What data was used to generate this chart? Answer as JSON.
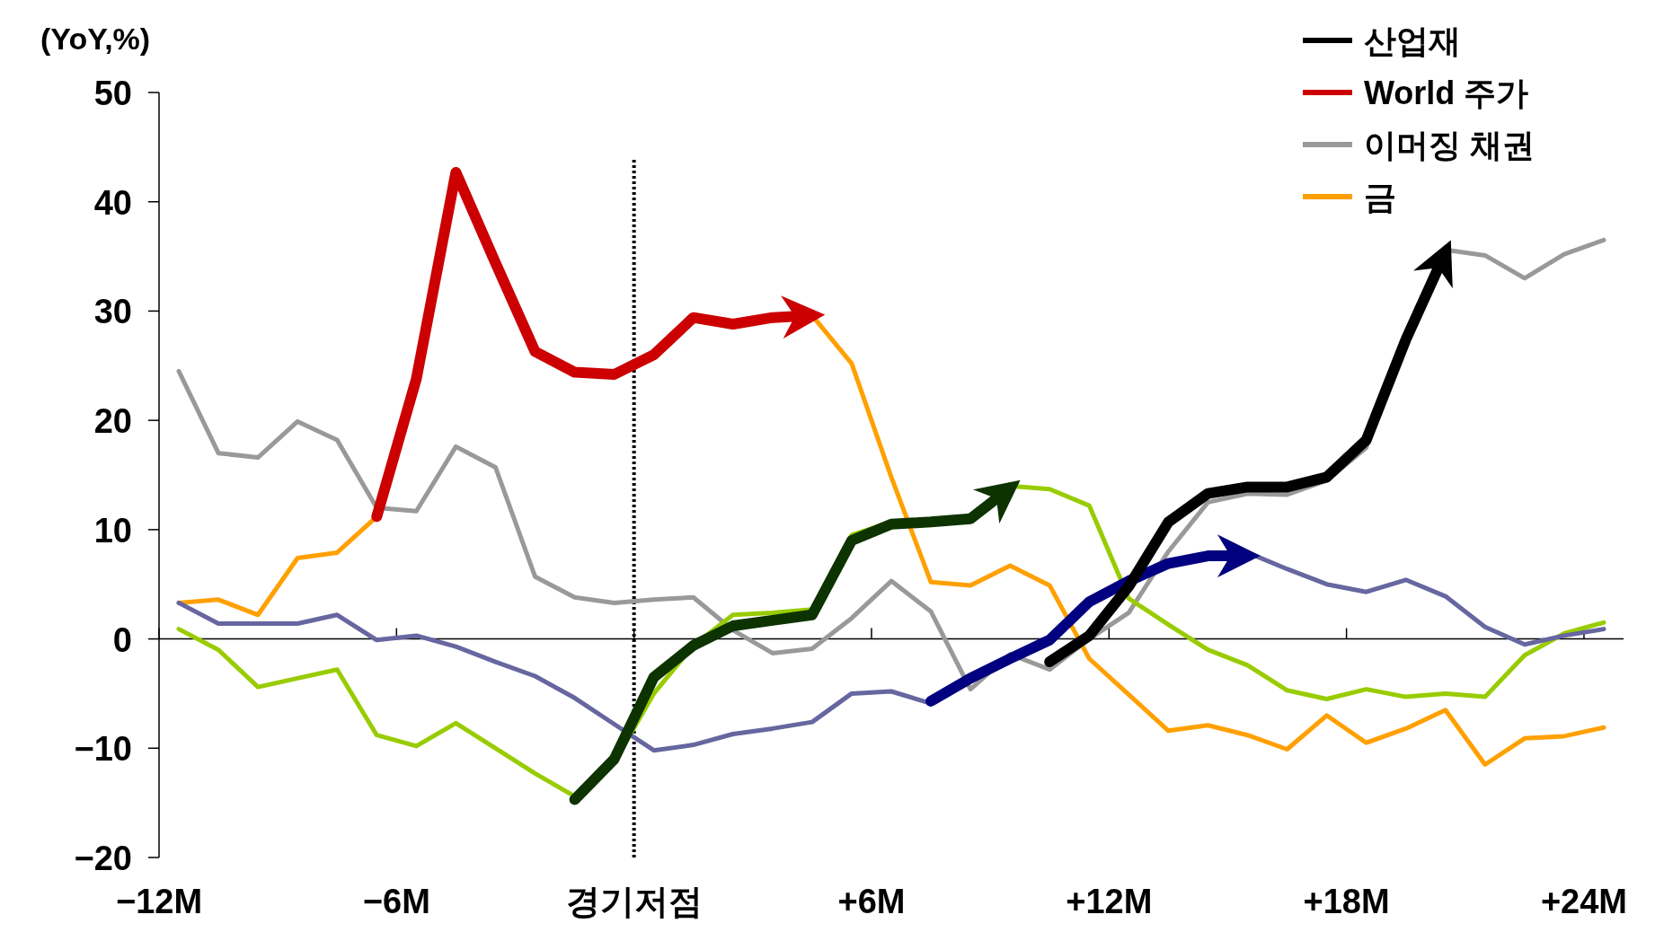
{
  "chart_data": {
    "type": "line",
    "ylabel": "(YoY,%)",
    "x": [
      -11.5,
      -10.5,
      -9.5,
      -8.5,
      -7.5,
      -6.5,
      -5.5,
      -4.5,
      -3.5,
      -2.5,
      -1.5,
      -0.5,
      0.5,
      1.5,
      2.5,
      3.5,
      4.5,
      5.5,
      6.5,
      7.5,
      8.5,
      9.5,
      10.5,
      11.5,
      12.5,
      13.5,
      14.5,
      15.5,
      16.5,
      17.5,
      18.5,
      19.5,
      20.5,
      21.5,
      22.5,
      23.5,
      24.5
    ],
    "xlim": [
      -12,
      25
    ],
    "xticks": [
      {
        "value": -12,
        "label": "−12M"
      },
      {
        "value": -6,
        "label": "−6M"
      },
      {
        "value": 0,
        "label": "경기저점"
      },
      {
        "value": 6,
        "label": "+6M"
      },
      {
        "value": 12,
        "label": "+12M"
      },
      {
        "value": 18,
        "label": "+18M"
      },
      {
        "value": 24,
        "label": "+24M"
      }
    ],
    "ylim": [
      -20,
      50
    ],
    "yticks": [
      {
        "value": -20,
        "label": "−20"
      },
      {
        "value": -10,
        "label": "−10"
      },
      0,
      10,
      20,
      30,
      40,
      50
    ],
    "legend": "top right",
    "ref_lines": [
      {
        "axis": "x",
        "value": 0,
        "color": "#000000",
        "line_style": "dotted"
      }
    ],
    "series": [
      {
        "name": "금",
        "color": "#ffa000",
        "values": [
          3.3,
          3.6,
          2.2,
          7.4,
          7.9,
          11.2,
          null,
          null,
          null,
          null,
          null,
          null,
          null,
          null,
          null,
          null,
          29.6,
          25.2,
          14.8,
          5.2,
          4.9,
          6.7,
          4.9,
          -1.8,
          -5.1,
          -8.4,
          -7.9,
          -8.8,
          -10.1,
          -7,
          -9.5,
          -8.2,
          -6.5,
          -11.5,
          -9.1,
          -8.9,
          -8.1
        ]
      },
      {
        "name": "이머징 채권",
        "color": "#999999",
        "values": [
          24.5,
          17,
          16.6,
          19.9,
          18.2,
          12,
          11.7,
          17.6,
          15.7,
          5.7,
          3.8,
          3.3,
          3.6,
          3.8,
          0.8,
          -1.3,
          -0.9,
          1.9,
          5.3,
          2.5,
          -4.6,
          -1.4,
          -2.8,
          0,
          2.4,
          8,
          12.5,
          13.3,
          13.2,
          14.5,
          17.5,
          27,
          35.6,
          35.1,
          33,
          35.2,
          36.5
        ]
      },
      {
        "color": "#99cc00",
        "values": [
          0.9,
          -1,
          -4.4,
          -3.6,
          -2.8,
          -8.8,
          -9.8,
          -7.7,
          -10,
          -12.3,
          -14.4,
          -11.3,
          -5,
          -0.6,
          2.2,
          2.4,
          2.7,
          9.5,
          10.7,
          10.8,
          11,
          14,
          13.7,
          12.2,
          3.7,
          1.3,
          -1,
          -2.4,
          -4.7,
          -5.5,
          -4.6,
          -5.3,
          -5,
          -5.3,
          -1.5,
          0.5,
          1.5
        ]
      },
      {
        "color": "#6666a0",
        "values": [
          3.3,
          1.4,
          1.4,
          1.4,
          2.2,
          -0.1,
          0.3,
          -0.7,
          -2.1,
          -3.4,
          -5.4,
          -7.8,
          -10.2,
          -9.7,
          -8.7,
          -8.2,
          -7.6,
          -5,
          -4.8,
          -5.9,
          null,
          null,
          null,
          null,
          null,
          null,
          null,
          7.9,
          6.4,
          5,
          4.3,
          5.4,
          3.9,
          1.1,
          -0.5,
          0.3,
          0.9
        ]
      },
      {
        "name": "World 주가",
        "color": "#cc0000",
        "x": [
          -6.5,
          -5.5,
          -4.5,
          -3.5,
          -2.5,
          -1.5,
          -0.5,
          0.5,
          1.5,
          2.5,
          3.5,
          4.5
        ],
        "values": [
          11.2,
          23.8,
          42.7,
          34.4,
          26.3,
          24.4,
          24.2,
          26,
          29.4,
          28.8,
          29.4,
          29.6
        ]
      },
      {
        "color": "#0d3300",
        "x": [
          -1.5,
          -0.5,
          0.5,
          1.5,
          2.5,
          3.5,
          4.5,
          5.5,
          6.5,
          7.5,
          8.5,
          9.5
        ],
        "values": [
          -14.7,
          -11,
          -3.5,
          -0.6,
          1.2,
          1.7,
          2.2,
          9,
          10.5,
          10.7,
          11,
          13.8
        ]
      },
      {
        "color": "#000080",
        "x": [
          7.5,
          8.5,
          9.5,
          10.5,
          11.5,
          12.5,
          13.5,
          14.5,
          15.5
        ],
        "values": [
          -5.7,
          -3.6,
          -1.8,
          -0.1,
          3.4,
          5.3,
          6.9,
          7.6,
          7.6
        ]
      },
      {
        "name": "산업재",
        "color": "#000000",
        "x": [
          10.5,
          11.5,
          12.5,
          13.5,
          14.5,
          15.5,
          16.5,
          17.5,
          18.5,
          19.5,
          20.5
        ],
        "values": [
          -2.1,
          0.3,
          4.8,
          10.7,
          13.3,
          13.9,
          13.9,
          14.8,
          18.2,
          27.4,
          35.4
        ]
      }
    ]
  }
}
